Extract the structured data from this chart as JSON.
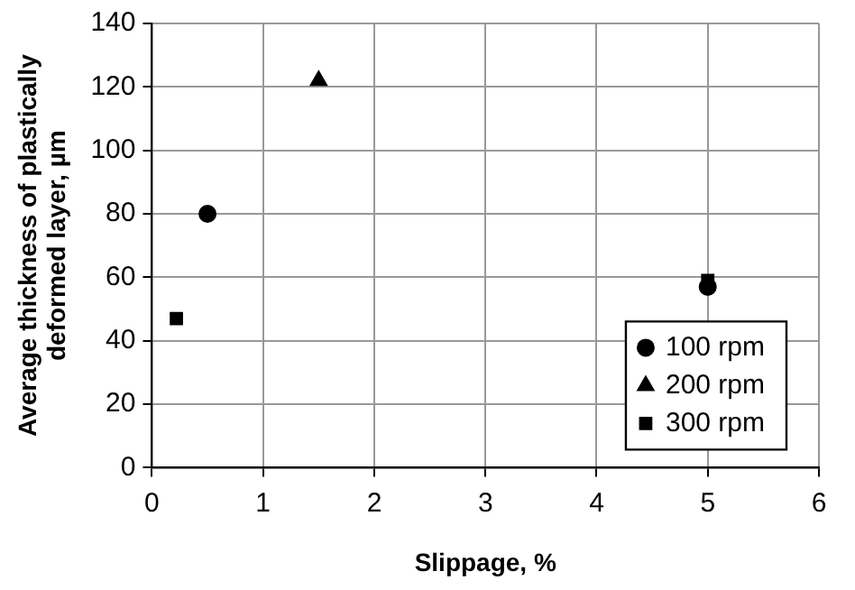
{
  "chart_data": {
    "type": "scatter",
    "xlabel": "Slippage, %",
    "ylabel": "Average thickness of plastically deformed layer, µm",
    "xlim": [
      0,
      6
    ],
    "xticks": [
      0,
      1,
      2,
      3,
      4,
      5,
      6
    ],
    "ylim": [
      0,
      140
    ],
    "yticks": [
      0,
      20,
      40,
      60,
      80,
      100,
      120,
      140
    ],
    "grid": true,
    "legend": "bottom right",
    "series": [
      {
        "name": "100 rpm",
        "color": "#000000",
        "marker": "circle",
        "x": [
          0.5,
          5
        ],
        "values": [
          80,
          57
        ]
      },
      {
        "name": "200 rpm",
        "color": "#000000",
        "marker": "triangle",
        "x": [
          1.5
        ],
        "values": [
          122
        ]
      },
      {
        "name": "300 rpm",
        "color": "#000000",
        "marker": "square",
        "x": [
          0.22,
          5
        ],
        "values": [
          47,
          59
        ]
      }
    ]
  }
}
